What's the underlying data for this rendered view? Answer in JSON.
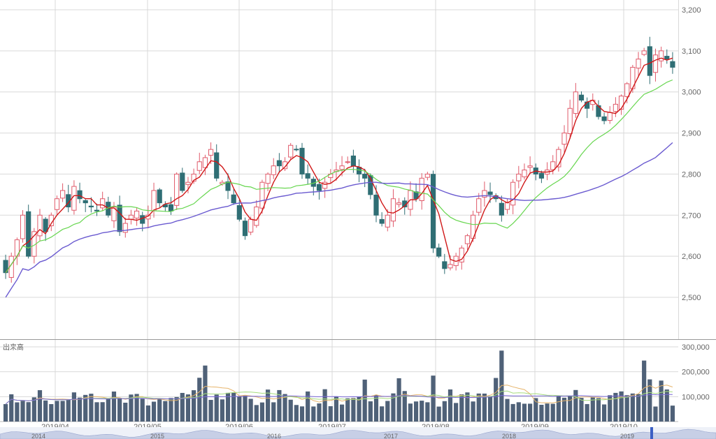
{
  "chart_data": {
    "type": "candlestick",
    "price_axis": {
      "ticks": [
        "3,200",
        "3,100",
        "3,000",
        "2,900",
        "2,800",
        "2,700",
        "2,600",
        "2,500"
      ],
      "tick_values": [
        3200,
        3100,
        3000,
        2900,
        2800,
        2700,
        2600,
        2500
      ],
      "ylim": [
        2400,
        3200
      ]
    },
    "volume_axis": {
      "label": "出来高",
      "ticks": [
        "300,000",
        "200,000",
        "100,000"
      ],
      "tick_values": [
        300000,
        200000,
        100000
      ],
      "ylim": [
        0,
        300000
      ]
    },
    "x_month_labels": [
      "2019/04",
      "2019/05",
      "2019/06",
      "2019/07",
      "2019/08",
      "2019/09",
      "2019/10"
    ],
    "navigator_year_labels": [
      "2014",
      "2015",
      "2016",
      "2017",
      "2018",
      "2019"
    ],
    "colors": {
      "up": "#e05a6a",
      "down": "#2f6e74",
      "ma_short": "#d01818",
      "ma_mid": "#66d64e",
      "ma_long": "#6a5ad0",
      "grid": "#d9d9d9",
      "volume_bar": "#4f6178"
    },
    "closes": [
      2560,
      2600,
      2640,
      2700,
      2600,
      2660,
      2700,
      2660,
      2700,
      2740,
      2760,
      2720,
      2770,
      2740,
      2730,
      2720,
      2710,
      2740,
      2700,
      2720,
      2660,
      2680,
      2700,
      2710,
      2680,
      2700,
      2760,
      2730,
      2720,
      2710,
      2800,
      2760,
      2780,
      2800,
      2830,
      2840,
      2860,
      2790,
      2780,
      2760,
      2730,
      2690,
      2650,
      2690,
      2720,
      2780,
      2800,
      2820,
      2820,
      2830,
      2870,
      2860,
      2800,
      2790,
      2770,
      2760,
      2780,
      2800,
      2810,
      2820,
      2830,
      2820,
      2800,
      2790,
      2750,
      2700,
      2680,
      2700,
      2740,
      2730,
      2720,
      2760,
      2740,
      2790,
      2800,
      2620,
      2600,
      2570,
      2580,
      2600,
      2620,
      2650,
      2700,
      2740,
      2760,
      2750,
      2740,
      2700,
      2730,
      2780,
      2800,
      2810,
      2820,
      2800,
      2790,
      2810,
      2830,
      2860,
      2900,
      2960,
      3000,
      2980,
      2960,
      2980,
      2940,
      2930,
      2950,
      2970,
      2990,
      3020,
      3060,
      3080,
      3100,
      3040,
      3090,
      3100,
      3080,
      3060
    ]
  }
}
